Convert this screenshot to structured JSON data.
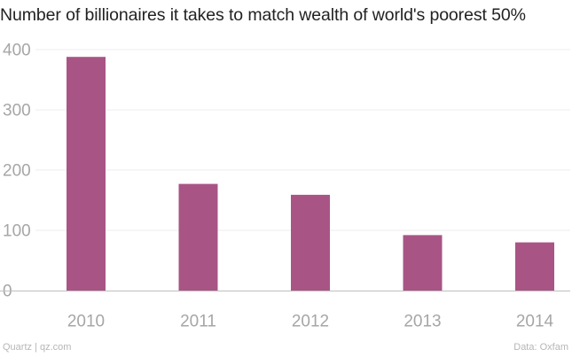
{
  "title": "Number of billionaires it takes to match wealth of world's poorest 50%",
  "footer": {
    "source_left": "Quartz | qz.com",
    "source_right": "Data: Oxfam"
  },
  "colors": {
    "bar": "#a85586",
    "grid": "#ececec",
    "axis": "#bfbfbf",
    "tick_text": "#a6a6a6"
  },
  "chart_data": {
    "type": "bar",
    "title": "Number of billionaires it takes to match wealth of world's poorest 50%",
    "xlabel": "",
    "ylabel": "",
    "categories": [
      "2010",
      "2011",
      "2012",
      "2013",
      "2014"
    ],
    "values": [
      388,
      177,
      159,
      92,
      80
    ],
    "ylim": [
      0,
      400
    ],
    "yticks": [
      0,
      100,
      200,
      300,
      400
    ],
    "grid": true,
    "legend": "none"
  }
}
